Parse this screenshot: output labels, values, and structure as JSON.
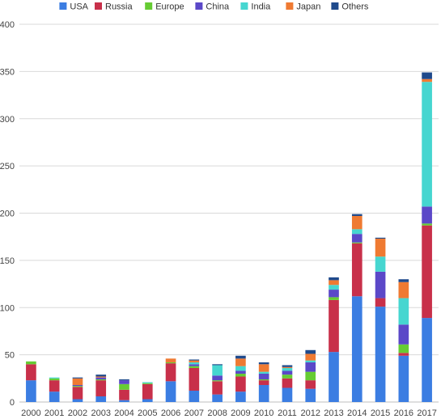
{
  "chart_data": {
    "type": "bar",
    "stacked": true,
    "title": "",
    "xlabel": "",
    "ylabel": "",
    "ylim": [
      0,
      400
    ],
    "yticks": [
      0,
      50,
      100,
      150,
      200,
      250,
      300,
      350,
      400
    ],
    "grid": true,
    "legend_position": "top",
    "categories": [
      "2000",
      "2001",
      "2002",
      "2003",
      "2004",
      "2005",
      "2006",
      "2007",
      "2008",
      "2009",
      "2010",
      "2011",
      "2012",
      "2013",
      "2014",
      "2015",
      "2016",
      "2017"
    ],
    "series": [
      {
        "name": "USA",
        "color": "#3b7de2",
        "values": [
          23,
          11,
          3,
          6,
          2,
          3,
          22,
          12,
          8,
          11,
          18,
          15,
          14,
          53,
          112,
          101,
          49,
          89
        ]
      },
      {
        "name": "Russia",
        "color": "#c8304a",
        "values": [
          17,
          12,
          13,
          17,
          11,
          16,
          19,
          24,
          14,
          16,
          5,
          10,
          9,
          55,
          56,
          9,
          3,
          98
        ]
      },
      {
        "name": "Europe",
        "color": "#66cc33",
        "values": [
          3,
          2,
          1,
          1,
          6,
          1,
          1,
          2,
          1,
          3,
          1,
          4,
          9,
          3,
          1,
          0,
          9,
          2
        ]
      },
      {
        "name": "China",
        "color": "#5b48c8",
        "values": [
          0,
          0,
          1,
          2,
          4,
          0,
          0,
          2,
          5,
          3,
          6,
          4,
          10,
          8,
          9,
          28,
          21,
          18
        ]
      },
      {
        "name": "India",
        "color": "#46d6d0",
        "values": [
          0,
          1,
          0,
          0,
          0,
          1,
          0,
          2,
          11,
          5,
          2,
          3,
          2,
          5,
          5,
          16,
          28,
          132
        ]
      },
      {
        "name": "Japan",
        "color": "#ef7a32",
        "values": [
          0,
          0,
          7,
          1,
          0,
          0,
          4,
          2,
          0,
          8,
          8,
          1,
          7,
          5,
          14,
          19,
          17,
          3
        ]
      },
      {
        "name": "Others",
        "color": "#1f4a8c",
        "values": [
          0,
          0,
          1,
          2,
          1,
          0,
          0,
          1,
          1,
          3,
          2,
          2,
          4,
          3,
          2,
          1,
          3,
          7
        ]
      }
    ]
  }
}
